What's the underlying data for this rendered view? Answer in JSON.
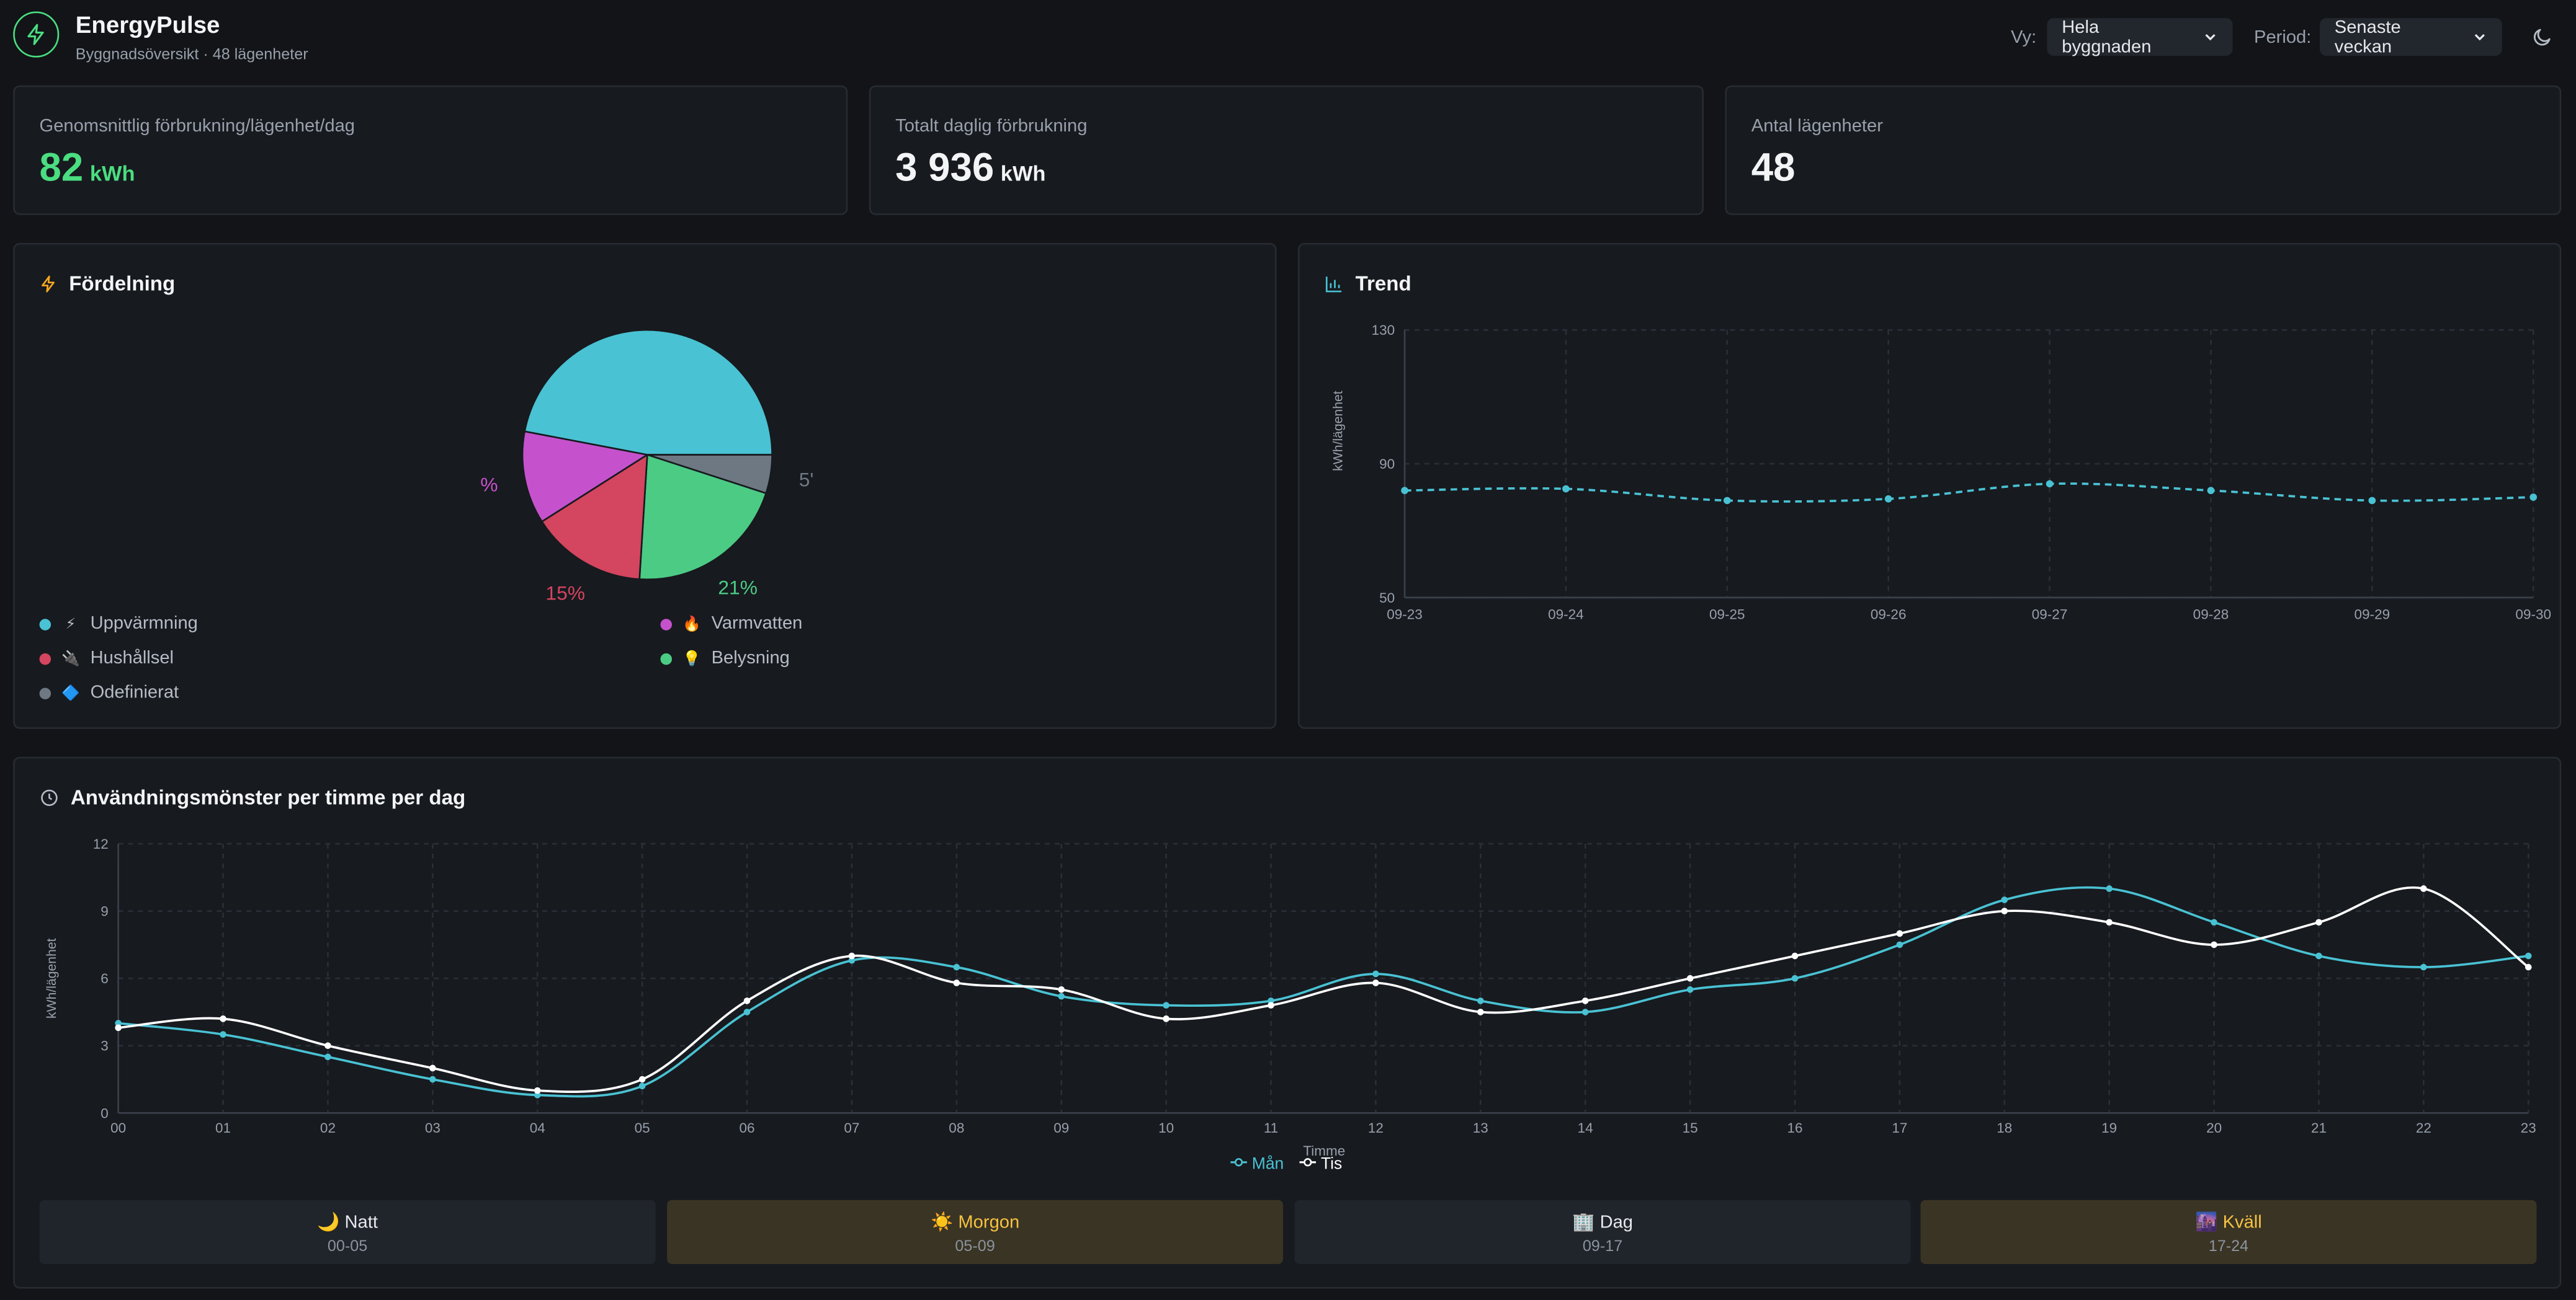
{
  "header": {
    "app_title": "EnergyPulse",
    "subtitle": "Byggnadsöversikt · 48 lägenheter",
    "view_label": "Vy:",
    "view_value": "Hela byggnaden",
    "period_label": "Period:",
    "period_value": "Senaste veckan",
    "icons": [
      "bolt-icon",
      "chevron-down-icon",
      "moon-icon"
    ]
  },
  "kpis": [
    {
      "label": "Genomsnittlig förbrukning/lägenhet/dag",
      "value": "82",
      "unit": "kWh",
      "color": "#4ade80"
    },
    {
      "label": "Totalt daglig förbrukning",
      "value": "3 936",
      "unit": "kWh",
      "color": "#f3f4f6"
    },
    {
      "label": "Antal lägenheter",
      "value": "48",
      "unit": "",
      "color": "#f3f4f6"
    }
  ],
  "distribution": {
    "title": "Fördelning",
    "legend": [
      {
        "label": "Uppvärmning",
        "icon": "⚡",
        "color": "#49c2d3"
      },
      {
        "label": "Varmvatten",
        "icon": "🔥",
        "color": "#c552cc"
      },
      {
        "label": "Hushållsel",
        "icon": "🔌",
        "color": "#d4455f"
      },
      {
        "label": "Belysning",
        "icon": "💡",
        "color": "#4ccb84"
      },
      {
        "label": "Odefinierat",
        "icon": "🔷",
        "color": "#6e7883"
      }
    ]
  },
  "trend": {
    "title": "Trend",
    "accent": "#49c2d3"
  },
  "usage": {
    "title": "Användningsmönster per timme per dag",
    "periods": [
      {
        "icon": "🌙",
        "name": "Natt",
        "range": "00-05"
      },
      {
        "icon": "☀️",
        "name": "Morgon",
        "range": "05-09"
      },
      {
        "icon": "🏢",
        "name": "Dag",
        "range": "09-17"
      },
      {
        "icon": "🌆",
        "name": "Kväll",
        "range": "17-24"
      }
    ]
  },
  "chart_data": [
    {
      "type": "pie",
      "categories": [
        "Uppvärmning",
        "Varmvatten",
        "Hushållsel",
        "Belysning",
        "Odefinierat"
      ],
      "values": [
        47,
        12,
        15,
        21,
        5
      ],
      "visible_labels": [
        "%",
        "15%",
        "21%",
        "5'"
      ],
      "colors": [
        "#49c2d3",
        "#c552cc",
        "#d4455f",
        "#4ccb84",
        "#6e7883"
      ]
    },
    {
      "type": "line",
      "x": [
        "09-23",
        "09-24",
        "09-25",
        "09-26",
        "09-27",
        "09-28",
        "09-29",
        "09-30"
      ],
      "series": [
        {
          "values": [
            82,
            82.5,
            79,
            79.5,
            84,
            82,
            79,
            80
          ],
          "color": "#49c2d3",
          "dashed": true
        }
      ],
      "ylabel": "kWh/lägenhet",
      "ylim": [
        50,
        130
      ],
      "yticks": [
        130,
        90,
        50
      ],
      "grid": true
    },
    {
      "type": "line",
      "x": [
        "00",
        "01",
        "02",
        "03",
        "04",
        "05",
        "06",
        "07",
        "08",
        "09",
        "10",
        "11",
        "12",
        "13",
        "14",
        "15",
        "16",
        "17",
        "18",
        "19",
        "20",
        "21",
        "22",
        "23"
      ],
      "series": [
        {
          "name": "Mån",
          "color": "#49c2d3",
          "values": [
            4,
            3.5,
            2.5,
            1.5,
            0.8,
            1.2,
            4.5,
            6.8,
            6.5,
            5.2,
            4.8,
            5,
            6.2,
            5,
            4.5,
            5.5,
            6,
            7.5,
            9.5,
            10,
            8.5,
            7,
            6.5,
            7
          ]
        },
        {
          "name": "Tis",
          "color": "#ffffff",
          "values": [
            3.8,
            4.2,
            3,
            2,
            1,
            1.5,
            5,
            7,
            5.8,
            5.5,
            4.2,
            4.8,
            5.8,
            4.5,
            5,
            6,
            7,
            8,
            9,
            8.5,
            7.5,
            8.5,
            10,
            6.5
          ]
        }
      ],
      "xlabel": "Timme",
      "ylabel": "kWh/lägenhet",
      "ylim": [
        0,
        12
      ],
      "yticks": [
        0,
        3,
        6,
        9,
        12
      ],
      "grid": true,
      "legend": "bottom"
    }
  ]
}
